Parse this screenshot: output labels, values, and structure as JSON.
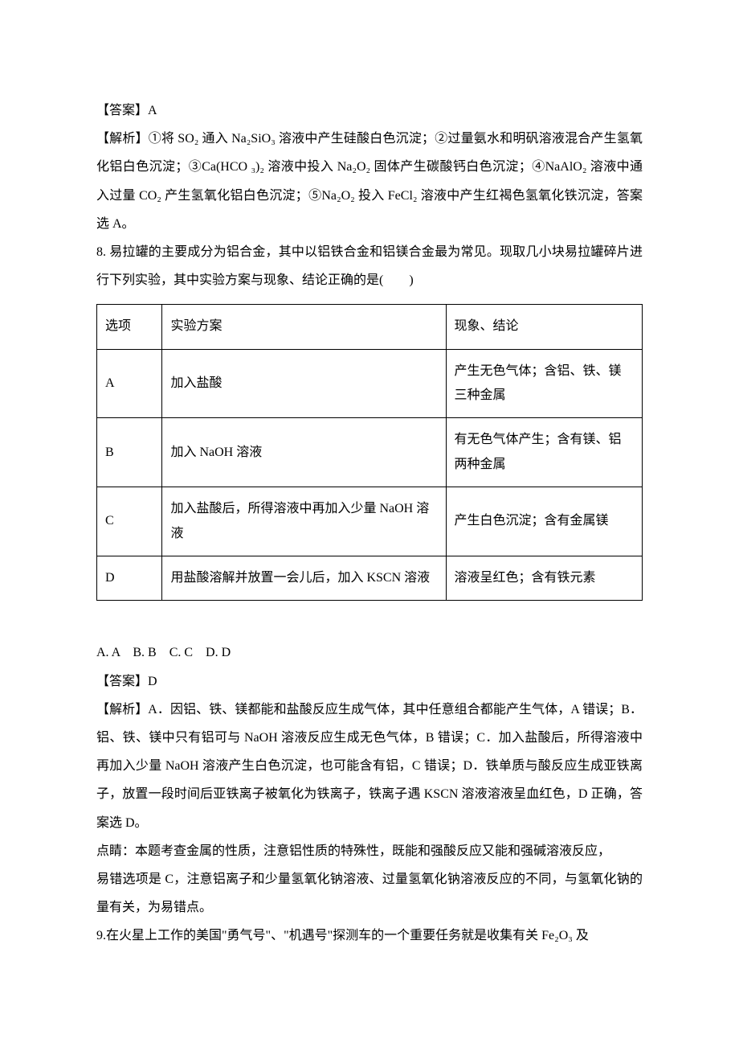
{
  "answer7": {
    "label": "【答案】A",
    "explain": "【解析】①将 SO₂ 通入 Na₂SiO₃ 溶液中产生硅酸白色沉淀；②过量氨水和明矾溶液混合产生氢氧化铝白色沉淀；③Ca(HCO ₃)₂ 溶液中投入 Na₂O₂ 固体产生碳酸钙白色沉淀；④NaAlO₂ 溶液中通入过量 CO₂ 产生氢氧化铝白色沉淀；⑤Na₂O₂ 投入 FeCl₂ 溶液中产生红褐色氢氧化铁沉淀，答案选 A。"
  },
  "q8": {
    "stem": "8. 易拉罐的主要成分为铝合金，其中以铝铁合金和铝镁合金最为常见。现取几小块易拉罐碎片进行下列实验，其中实验方案与现象、结论正确的是(　　)",
    "headers": {
      "opt": "选项",
      "plan": "实验方案",
      "result": "现象、结论"
    },
    "rows": [
      {
        "opt": "A",
        "plan": "加入盐酸",
        "result": "产生无色气体；含铝、铁、镁三种金属"
      },
      {
        "opt": "B",
        "plan": "加入 NaOH 溶液",
        "result": "有无色气体产生；含有镁、铝两种金属"
      },
      {
        "opt": "C",
        "plan": "加入盐酸后，所得溶液中再加入少量 NaOH 溶液",
        "result": "产生白色沉淀；含有金属镁"
      },
      {
        "opt": "D",
        "plan": "用盐酸溶解并放置一会儿后，加入 KSCN 溶液",
        "result": "溶液呈红色；含有铁元素"
      }
    ],
    "choices": "A. A    B. B    C. C    D. D",
    "answer": "【答案】D",
    "explain": "【解析】A．因铝、铁、镁都能和盐酸反应生成气体，其中任意组合都能产生气体，A 错误；B．铝、铁、镁中只有铝可与 NaOH 溶液反应生成无色气体，B 错误；C．加入盐酸后，所得溶液中再加入少量 NaOH 溶液产生白色沉淀，也可能含有铝，C 错误；D．铁单质与酸反应生成亚铁离子，放置一段时间后亚铁离子被氧化为铁离子，铁离子遇 KSCN 溶液溶液呈血红色，D 正确，答案选 D。",
    "dianjing1": "点睛：本题考查金属的性质，注意铝性质的特殊性，既能和强酸反应又能和强碱溶液反应，",
    "dianjing2": "易错选项是 C，注意铝离子和少量氢氧化钠溶液、过量氢氧化钠溶液反应的不同，与氢氧化钠的量有关，为易错点。"
  },
  "q9": {
    "stem": "9.在火星上工作的美国\"勇气号\"、\"机遇号\"探测车的一个重要任务就是收集有关 Fe₂O₃ 及"
  }
}
